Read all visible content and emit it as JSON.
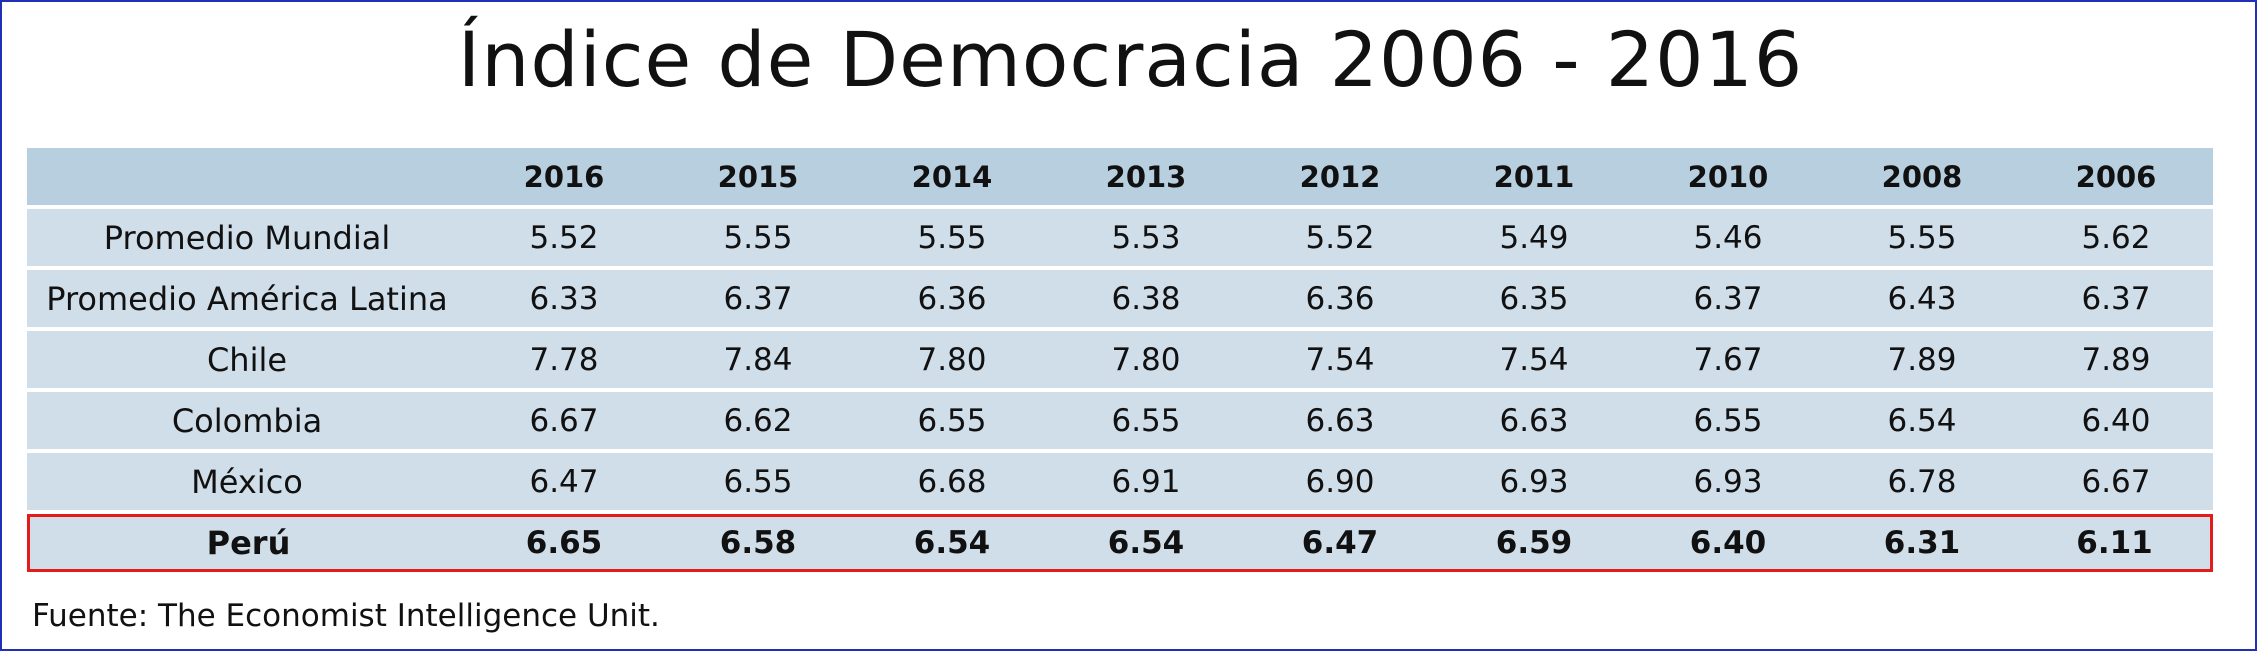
{
  "title": "Índice de Democracia 2006 - 2016",
  "source": "Fuente: The Economist Intelligence Unit.",
  "colors": {
    "header_fill": "#b8cfe0",
    "row_fill": "#d0deea",
    "highlight_border": "#e31b1b",
    "frame_border": "#1f2fb8"
  },
  "chart_data": {
    "type": "table",
    "title": "Índice de Democracia 2006 - 2016",
    "columns": [
      "",
      "2016",
      "2015",
      "2014",
      "2013",
      "2012",
      "2011",
      "2010",
      "2008",
      "2006"
    ],
    "rows": [
      {
        "label": "Promedio Mundial",
        "values": [
          "5.52",
          "5.55",
          "5.55",
          "5.53",
          "5.52",
          "5.49",
          "5.46",
          "5.55",
          "5.62"
        ],
        "highlight": false
      },
      {
        "label": "Promedio América Latina",
        "values": [
          "6.33",
          "6.37",
          "6.36",
          "6.38",
          "6.36",
          "6.35",
          "6.37",
          "6.43",
          "6.37"
        ],
        "highlight": false
      },
      {
        "label": "Chile",
        "values": [
          "7.78",
          "7.84",
          "7.80",
          "7.80",
          "7.54",
          "7.54",
          "7.67",
          "7.89",
          "7.89"
        ],
        "highlight": false
      },
      {
        "label": "Colombia",
        "values": [
          "6.67",
          "6.62",
          "6.55",
          "6.55",
          "6.63",
          "6.63",
          "6.55",
          "6.54",
          "6.40"
        ],
        "highlight": false
      },
      {
        "label": "México",
        "values": [
          "6.47",
          "6.55",
          "6.68",
          "6.91",
          "6.90",
          "6.93",
          "6.93",
          "6.78",
          "6.67"
        ],
        "highlight": false
      },
      {
        "label": "Perú",
        "values": [
          "6.65",
          "6.58",
          "6.54",
          "6.54",
          "6.47",
          "6.59",
          "6.40",
          "6.31",
          "6.11"
        ],
        "highlight": true
      }
    ]
  }
}
